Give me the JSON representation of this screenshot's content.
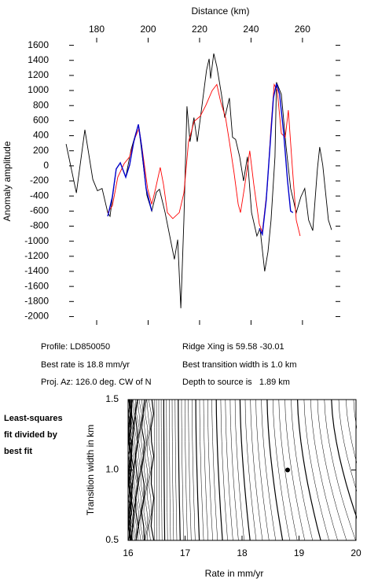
{
  "chart_data": [
    {
      "type": "line",
      "xlabel": "Distance (km)",
      "ylabel": "Anomaly amplitude",
      "xlim": [
        169.3,
        274.7
      ],
      "ylim": [
        -2110,
        1700
      ],
      "xticks": [
        180,
        200,
        220,
        240,
        260
      ],
      "yticks": [
        1600,
        1400,
        1200,
        1000,
        800,
        600,
        400,
        200,
        0,
        -200,
        -400,
        -600,
        -800,
        -1000,
        -1200,
        -1400,
        -1600,
        -1800,
        -2000
      ],
      "series": [
        {
          "color": "#000000",
          "x": [
            168.1,
            172.1,
            175.4,
            178.5,
            180.3,
            182.1,
            184.3,
            185.2,
            187.6,
            189.2,
            191.3,
            193.4,
            196.2,
            197.4,
            199.5,
            201.4,
            203.2,
            204.4,
            206.6,
            208.4,
            210.2,
            211.5,
            212.7,
            213.9,
            215.1,
            216.3,
            217.8,
            219.1,
            220.9,
            222.7,
            223.7,
            224.3,
            225.5,
            226.7,
            228.5,
            229.8,
            231.6,
            232.8,
            234.0,
            235.6,
            237.1,
            238.6,
            240.2,
            242.3,
            243.5,
            245.3,
            246.6,
            247.8,
            249.3,
            249.9,
            251.8,
            253.6,
            255.4,
            257.6,
            259.4,
            260.9,
            262.4,
            264.0,
            265.8,
            266.7,
            267.9,
            270.1,
            271.3
          ],
          "values": [
            290,
            -360,
            480,
            -180,
            -330,
            -300,
            -620,
            -670,
            -40,
            40,
            -150,
            220,
            550,
            220,
            -390,
            -600,
            -350,
            -310,
            -620,
            -930,
            -1240,
            -980,
            -1890,
            -720,
            790,
            320,
            640,
            320,
            790,
            1270,
            1420,
            1160,
            1490,
            1320,
            950,
            640,
            900,
            380,
            350,
            120,
            -200,
            120,
            -620,
            -930,
            -830,
            -1400,
            -1140,
            -720,
            120,
            1110,
            950,
            270,
            -300,
            -620,
            -410,
            -300,
            -720,
            -860,
            -40,
            250,
            10,
            -720,
            -850
          ]
        },
        {
          "color": "#ff0000",
          "x": [
            184.3,
            186.1,
            188.2,
            190.7,
            192.8,
            195.0,
            196.5,
            197.7,
            199.8,
            201.4,
            202.9,
            204.7,
            206.0,
            207.5,
            209.6,
            212.1,
            213.9,
            215.7,
            217.9,
            220.3,
            222.4,
            224.9,
            226.7,
            228.2,
            230.1,
            231.6,
            233.4,
            235.0,
            235.9,
            237.4,
            239.5,
            241.1,
            243.2,
            244.4,
            246.3,
            247.8,
            249.0,
            250.2,
            251.8,
            253.3,
            254.5,
            256.0,
            257.6,
            259.1
          ],
          "values": [
            -620,
            -530,
            -150,
            30,
            120,
            380,
            500,
            220,
            -300,
            -510,
            -300,
            -20,
            -250,
            -620,
            -700,
            -620,
            -360,
            320,
            590,
            660,
            800,
            1000,
            1080,
            850,
            640,
            320,
            -90,
            -510,
            -620,
            -300,
            200,
            -250,
            -770,
            -880,
            -300,
            530,
            1080,
            1000,
            430,
            380,
            740,
            10,
            -720,
            -930
          ]
        },
        {
          "color": "#0000cc",
          "x": [
            184.3,
            186.1,
            187.6,
            189.2,
            191.3,
            192.8,
            194.4,
            196.2,
            197.4,
            199.2,
            201.4
          ],
          "values": [
            -670,
            -410,
            -40,
            40,
            -150,
            10,
            320,
            550,
            270,
            -300,
            -600
          ]
        },
        {
          "color": "#0000cc",
          "x": [
            243.2,
            244.4,
            245.9,
            247.5,
            248.7,
            249.9,
            251.1,
            252.7,
            254.2,
            255.4,
            256.3
          ],
          "values": [
            -830,
            -910,
            -460,
            320,
            900,
            1090,
            950,
            430,
            -200,
            -600,
            -620
          ]
        }
      ],
      "annotations": [
        "Profile: LD850050",
        "Best rate is 18.8 mm/yr",
        "Proj. Az: 126.0 deg. CW of N",
        "Ridge Xing is 59.58 -30.01",
        "Best transition width is 1.0 km",
        "Depth to source is   1.89 km"
      ]
    },
    {
      "type": "contour",
      "title_lines": [
        "Least-squares",
        "fit divided by",
        "best fit"
      ],
      "xlabel": "Rate in mm/yr",
      "ylabel": "Transition width in km",
      "xlim": [
        16,
        20
      ],
      "ylim": [
        0.5,
        1.5
      ],
      "xticks": [
        16,
        17,
        18,
        19,
        20
      ],
      "yticks": [
        0.5,
        {
          "value": 1,
          "label": "1.0"
        },
        1.5
      ],
      "points": {
        "x": [
          18.8
        ],
        "y": [
          1
        ]
      }
    }
  ]
}
